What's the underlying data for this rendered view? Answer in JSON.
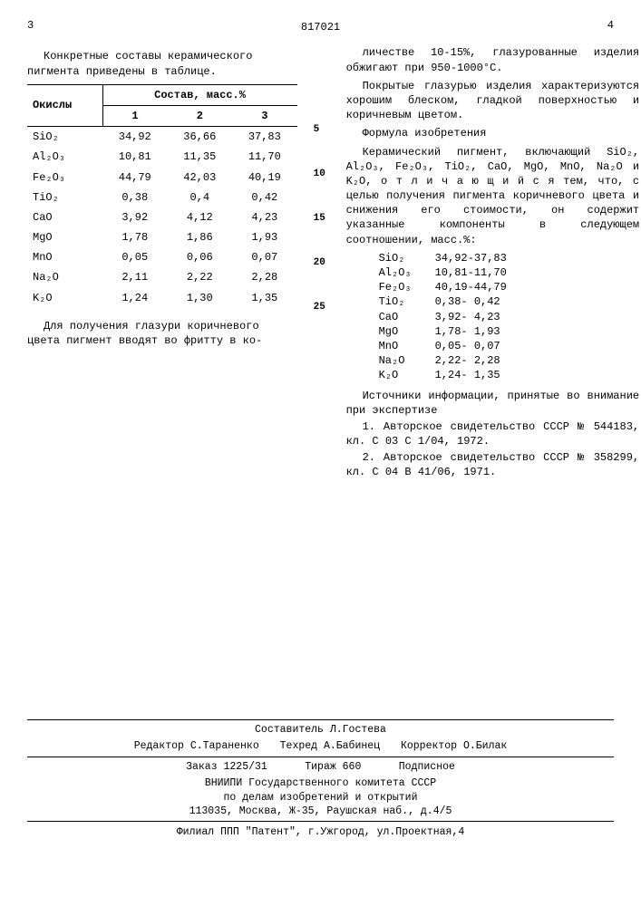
{
  "header": {
    "left_num": "3",
    "doc_number": "817021",
    "right_num": "4"
  },
  "left": {
    "intro": "Конкретные составы керамического пигмента приведены в таблице.",
    "table": {
      "col_header_main": "Окислы",
      "col_header_group": "Состав, масс.%",
      "cols": [
        "1",
        "2",
        "3"
      ],
      "rows": [
        {
          "oxide": "SiO₂",
          "v": [
            "34,92",
            "36,66",
            "37,83"
          ]
        },
        {
          "oxide": "Al₂O₃",
          "v": [
            "10,81",
            "11,35",
            "11,70"
          ]
        },
        {
          "oxide": "Fe₂O₃",
          "v": [
            "44,79",
            "42,03",
            "40,19"
          ]
        },
        {
          "oxide": "TiO₂",
          "v": [
            "0,38",
            "0,4",
            "0,42"
          ]
        },
        {
          "oxide": "CaO",
          "v": [
            "3,92",
            "4,12",
            "4,23"
          ]
        },
        {
          "oxide": "MgO",
          "v": [
            "1,78",
            "1,86",
            "1,93"
          ]
        },
        {
          "oxide": "MnO",
          "v": [
            "0,05",
            "0,06",
            "0,07"
          ]
        },
        {
          "oxide": "Na₂O",
          "v": [
            "2,11",
            "2,22",
            "2,28"
          ]
        },
        {
          "oxide": "K₂O",
          "v": [
            "1,24",
            "1,30",
            "1,35"
          ]
        }
      ]
    },
    "below_table": "Для получения глазури коричневого цвета пигмент вводят во фритту в ко-"
  },
  "markers": [
    "5",
    "10",
    "15",
    "20",
    "25"
  ],
  "right": {
    "p1": "личестве 10-15%, глазурованные изделия обжигают при 950-1000°С.",
    "p2": "Покрытые глазурью изделия характеризуются хорошим блеском, гладкой поверхностью и коричневым цветом.",
    "formula_head": "Формула изобретения",
    "p3a": "Керамический пигмент, включающий SiO₂, Al₂O₃, Fe₂O₃, TiO₂, CaO, MgO, MnO, Na₂O и K₂O, о т л и ч а ю щ и й с я  тем, что, с целью получения пигмента коричневого цвета и снижения его стоимости, он содержит указанные компоненты в следующем соотношении, масс.%:",
    "components": [
      {
        "lab": "SiO₂",
        "rng": "34,92-37,83"
      },
      {
        "lab": "Al₂O₃",
        "rng": "10,81-11,70"
      },
      {
        "lab": "Fe₂O₃",
        "rng": "40,19-44,79"
      },
      {
        "lab": "TiO₂",
        "rng": "0,38- 0,42"
      },
      {
        "lab": "CaO",
        "rng": "3,92- 4,23"
      },
      {
        "lab": "MgO",
        "rng": "1,78- 1,93"
      },
      {
        "lab": "MnO",
        "rng": "0,05- 0,07"
      },
      {
        "lab": "Na₂O",
        "rng": "2,22- 2,28"
      },
      {
        "lab": "K₂O",
        "rng": "1,24- 1,35"
      }
    ],
    "refs_head": "Источники информации, принятые во внимание при экспертизе",
    "ref1": "1. Авторское свидетельство СССР № 544183, кл. С 03 С 1/04, 1972.",
    "ref2": "2. Авторское свидетельство СССР № 358299, кл. С 04 В 41/06, 1971."
  },
  "footer": {
    "compiler": "Составитель Л.Гостева",
    "editor": "Редактор С.Тараненко",
    "tech": "Техред А.Бабинец",
    "corrector": "Корректор О.Билак",
    "order": "Заказ 1225/31",
    "print_run": "Тираж 660",
    "subscr": "Подписное",
    "org1": "ВНИИПИ Государственного комитета СССР",
    "org2": "по делам изобретений и открытий",
    "addr": "113035, Москва, Ж-35, Раушская наб., д.4/5",
    "branch": "Филиал ППП \"Патент\", г.Ужгород, ул.Проектная,4"
  }
}
